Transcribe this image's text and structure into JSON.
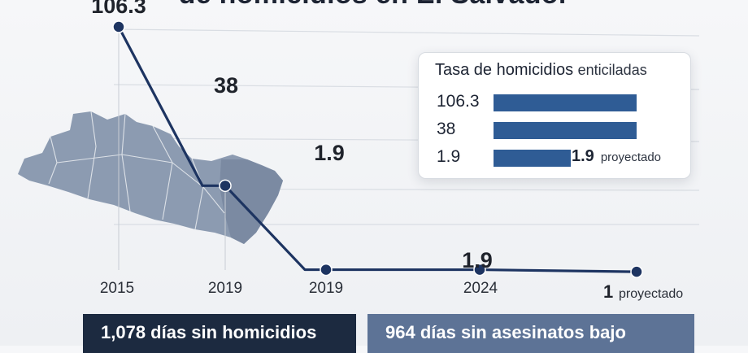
{
  "chart_data": {
    "type": "line",
    "title": "de homicidios en El Salvador",
    "categories": [
      "2015",
      "2019",
      "2019",
      "2024",
      ""
    ],
    "series": [
      {
        "values": [
          106.3,
          38,
          1.9,
          1.9,
          1
        ]
      }
    ],
    "point_labels": [
      "106.3",
      "38",
      "1.9",
      "1.9",
      "1"
    ],
    "last_point_suffix": "proyectado",
    "grid": "horizontal",
    "legend": {
      "placement": "top-right",
      "title": "Tasa de homicidios",
      "title_suffix": "enticiladas",
      "rows": [
        {
          "label": "106.3",
          "value": 106.3,
          "bar_fraction": 1.0
        },
        {
          "label": "38",
          "value": 38,
          "bar_fraction": 1.0
        },
        {
          "label": "1.9",
          "value": 1.9,
          "bar_fraction": 0.54,
          "extra_value": "1.9",
          "extra_note": "proyectado"
        }
      ]
    },
    "colors": {
      "line": "#1d3461",
      "legend_bar": "#2f5c95",
      "map": "#8c9bb1"
    }
  },
  "banners": [
    {
      "text": "1,078 días sin homicidios",
      "color": "#1c2a40"
    },
    {
      "text": "964 días sin asesinatos bajo",
      "color": "#5d7396"
    }
  ]
}
